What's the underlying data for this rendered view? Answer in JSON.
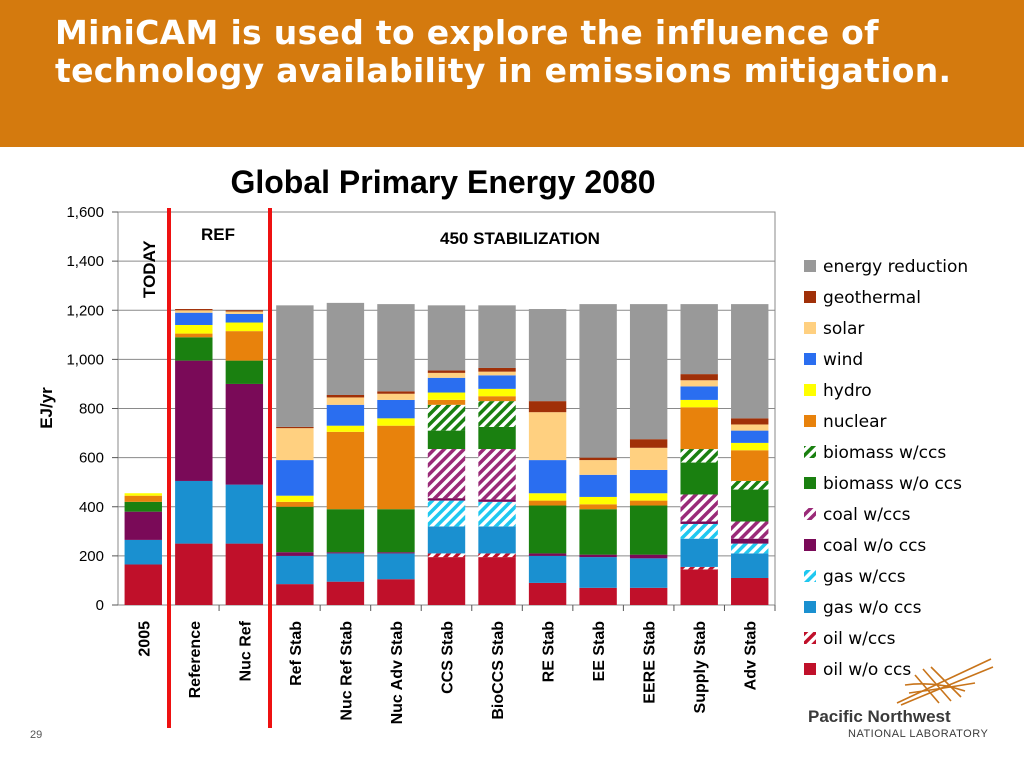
{
  "slide": {
    "title": "MiniCAM is used to explore the influence of technology availability in emissions mitigation.",
    "number": "29"
  },
  "logo": {
    "line1": "Pacific Northwest",
    "line2": "NATIONAL LABORATORY"
  },
  "colors": {
    "header_bg": "#d47a0e",
    "divider": "#ee1111"
  },
  "chart_data": {
    "type": "bar",
    "stacked": true,
    "title": "Global Primary Energy 2080",
    "ylabel": "EJ/yr",
    "xlabel": "",
    "ylim": [
      0,
      1600
    ],
    "yticks": [
      "0",
      "200",
      "400",
      "600",
      "800",
      "1,000",
      "1,200",
      "1,400",
      "1,600"
    ],
    "grid": true,
    "legend_position": "right",
    "categories": [
      "2005",
      "Reference",
      "Nuc Ref",
      "Ref Stab",
      "Nuc Ref Stab",
      "Nuc Adv Stab",
      "CCS Stab",
      "BioCCS Stab",
      "RE Stab",
      "EE Stab",
      "EERE Stab",
      "Supply Stab",
      "Adv Stab"
    ],
    "annotations": [
      {
        "text": "TODAY"
      },
      {
        "text": "REF"
      },
      {
        "text": "450 STABILIZATION"
      }
    ],
    "series": [
      {
        "name": "oil w/o ccs",
        "color": "#c0102a",
        "pattern": "solid",
        "values": [
          165,
          250,
          250,
          85,
          95,
          105,
          195,
          195,
          90,
          70,
          70,
          145,
          110
        ]
      },
      {
        "name": "oil w/ccs",
        "color": "#c0102a",
        "pattern": "hatch",
        "values": [
          0,
          0,
          0,
          0,
          0,
          0,
          15,
          15,
          0,
          0,
          0,
          10,
          0
        ]
      },
      {
        "name": "gas w/o ccs",
        "color": "#1a90d0",
        "pattern": "solid",
        "values": [
          100,
          255,
          240,
          115,
          115,
          105,
          110,
          110,
          110,
          125,
          120,
          115,
          100
        ]
      },
      {
        "name": "gas w/ccs",
        "color": "#1fc8f0",
        "pattern": "hatch",
        "values": [
          0,
          0,
          0,
          0,
          0,
          0,
          105,
          100,
          0,
          0,
          0,
          60,
          40
        ]
      },
      {
        "name": "coal w/o ccs",
        "color": "#7a0a58",
        "pattern": "solid",
        "values": [
          115,
          490,
          410,
          15,
          5,
          5,
          10,
          10,
          10,
          10,
          15,
          10,
          20
        ]
      },
      {
        "name": "coal w/ccs",
        "color": "#9a2a78",
        "pattern": "hatch",
        "values": [
          0,
          0,
          0,
          0,
          0,
          0,
          200,
          205,
          0,
          0,
          0,
          110,
          70
        ]
      },
      {
        "name": "biomass w/o ccs",
        "color": "#1a8010",
        "pattern": "solid",
        "values": [
          40,
          95,
          95,
          185,
          175,
          175,
          75,
          90,
          195,
          185,
          200,
          130,
          130
        ]
      },
      {
        "name": "biomass w/ccs",
        "color": "#1a8010",
        "pattern": "hatch",
        "values": [
          0,
          0,
          0,
          0,
          0,
          0,
          105,
          105,
          0,
          0,
          0,
          55,
          35
        ]
      },
      {
        "name": "nuclear",
        "color": "#e8820c",
        "pattern": "solid",
        "values": [
          25,
          15,
          120,
          20,
          315,
          340,
          20,
          20,
          20,
          20,
          20,
          170,
          125
        ]
      },
      {
        "name": "hydro",
        "color": "#ffff00",
        "pattern": "solid",
        "values": [
          10,
          35,
          35,
          25,
          25,
          30,
          30,
          30,
          30,
          30,
          30,
          30,
          30
        ]
      },
      {
        "name": "wind",
        "color": "#2a6ef0",
        "pattern": "solid",
        "values": [
          0,
          50,
          35,
          145,
          85,
          75,
          60,
          55,
          135,
          90,
          95,
          55,
          50
        ]
      },
      {
        "name": "solar",
        "color": "#ffd080",
        "pattern": "solid",
        "values": [
          0,
          10,
          10,
          130,
          30,
          25,
          20,
          15,
          195,
          60,
          90,
          25,
          25
        ]
      },
      {
        "name": "geothermal",
        "color": "#a03008",
        "pattern": "solid",
        "values": [
          0,
          5,
          5,
          5,
          10,
          10,
          10,
          15,
          45,
          10,
          35,
          25,
          25
        ]
      },
      {
        "name": "energy reduction",
        "color": "#999999",
        "pattern": "solid",
        "values": [
          0,
          0,
          0,
          495,
          375,
          355,
          265,
          255,
          375,
          625,
          550,
          285,
          465
        ]
      }
    ]
  }
}
